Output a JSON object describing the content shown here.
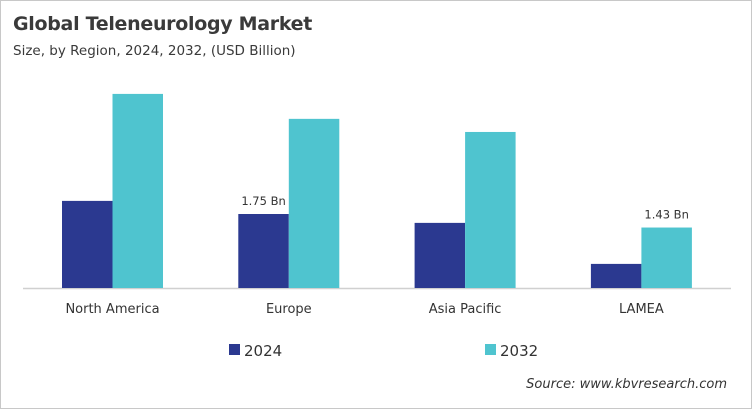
{
  "chart_data": {
    "type": "bar",
    "title": "Global Teleneurology Market",
    "subtitle": "Size, by Region, 2024, 2032, (USD Billion)",
    "categories": [
      "North America",
      "Europe",
      "Asia Pacific",
      "LAMEA"
    ],
    "series": [
      {
        "name": "2024",
        "color": "#2b3990",
        "values": [
          2.06,
          1.75,
          1.54,
          0.57
        ]
      },
      {
        "name": "2032",
        "color": "#4fc4cf",
        "values": [
          4.59,
          4.0,
          3.69,
          1.43
        ]
      }
    ],
    "data_labels": [
      {
        "series": "2024",
        "category": "Europe",
        "text": "1.75 Bn"
      },
      {
        "series": "2032",
        "category": "LAMEA",
        "text": "1.43 Bn"
      }
    ],
    "ylim": [
      0,
      5
    ],
    "y_axis_visible": false,
    "grid": false,
    "legend": "bottom-center",
    "source": "Source: www.kbvresearch.com"
  }
}
